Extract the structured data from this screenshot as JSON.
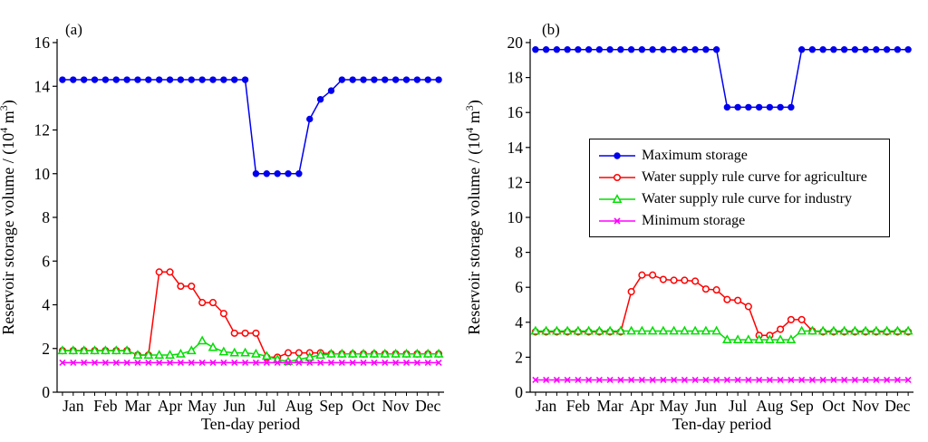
{
  "figure": {
    "background": "#ffffff",
    "text_color": "#000000",
    "xlabel": "Ten-day period",
    "ylabel": "Reservoir storage volume / (10^4 m^3)",
    "ylabel_parts": [
      [
        "Reservoir storage volume / (10",
        false
      ],
      [
        "4",
        true
      ],
      [
        " m",
        false
      ],
      [
        "3",
        true
      ],
      [
        ")",
        false
      ]
    ],
    "months": [
      "Jan",
      "Feb",
      "Mar",
      "Apr",
      "May",
      "Jun",
      "Jul",
      "Aug",
      "Sep",
      "Oct",
      "Nov",
      "Dec"
    ]
  },
  "legend": {
    "location": "panel-b middle-left",
    "entries": [
      {
        "label": "Maximum storage",
        "color": "#0000EE",
        "marker": "filled-circle"
      },
      {
        "label": "Water supply rule curve for agriculture",
        "color": "#FF0000",
        "marker": "open-circle"
      },
      {
        "label": "Water supply rule curve for industry",
        "color": "#00DD00",
        "marker": "open-triangle"
      },
      {
        "label": "Minimum storage",
        "color": "#FF00FF",
        "marker": "x"
      }
    ]
  },
  "chart_data": [
    {
      "type": "line",
      "panel_label": "(a)",
      "xlabel": "Ten-day period",
      "ylabel": "Reservoir storage volume / (10^4 m^3)",
      "x_months": [
        "Jan",
        "Feb",
        "Mar",
        "Apr",
        "May",
        "Jun",
        "Jul",
        "Aug",
        "Sep",
        "Oct",
        "Nov",
        "Dec"
      ],
      "points_per_month": 3,
      "n_points": 36,
      "ylim": [
        0,
        16
      ],
      "ytick_step": 2,
      "grid": false,
      "legend_here": false,
      "series": [
        {
          "name": "Maximum storage",
          "color": "#0000EE",
          "marker": "filled-circle",
          "values": [
            14.3,
            14.3,
            14.3,
            14.3,
            14.3,
            14.3,
            14.3,
            14.3,
            14.3,
            14.3,
            14.3,
            14.3,
            14.3,
            14.3,
            14.3,
            14.3,
            14.3,
            14.3,
            10,
            10,
            10,
            10,
            10,
            12.5,
            13.4,
            13.8,
            14.3,
            14.3,
            14.3,
            14.3,
            14.3,
            14.3,
            14.3,
            14.3,
            14.3,
            14.3
          ]
        },
        {
          "name": "Water supply rule curve for agriculture",
          "color": "#FF0000",
          "marker": "open-circle",
          "values": [
            1.9,
            1.9,
            1.9,
            1.9,
            1.9,
            1.9,
            1.9,
            1.7,
            1.7,
            5.5,
            5.5,
            4.85,
            4.85,
            4.1,
            4.1,
            3.6,
            2.7,
            2.7,
            2.7,
            1.6,
            1.6,
            1.8,
            1.8,
            1.8,
            1.8,
            1.75,
            1.75,
            1.75,
            1.75,
            1.75,
            1.75,
            1.75,
            1.75,
            1.75,
            1.75,
            1.75
          ]
        },
        {
          "name": "Water supply rule curve for industry",
          "color": "#00DD00",
          "marker": "open-triangle",
          "values": [
            1.9,
            1.9,
            1.9,
            1.9,
            1.9,
            1.9,
            1.9,
            1.7,
            1.7,
            1.7,
            1.7,
            1.75,
            1.9,
            2.35,
            2.05,
            1.85,
            1.8,
            1.8,
            1.75,
            1.65,
            1.5,
            1.4,
            1.5,
            1.6,
            1.7,
            1.75,
            1.75,
            1.75,
            1.75,
            1.75,
            1.75,
            1.75,
            1.75,
            1.75,
            1.75,
            1.75
          ]
        },
        {
          "name": "Minimum storage",
          "color": "#FF00FF",
          "marker": "x",
          "values": [
            1.35,
            1.35,
            1.35,
            1.35,
            1.35,
            1.35,
            1.35,
            1.35,
            1.35,
            1.35,
            1.35,
            1.35,
            1.35,
            1.35,
            1.35,
            1.35,
            1.35,
            1.35,
            1.35,
            1.35,
            1.35,
            1.35,
            1.35,
            1.35,
            1.35,
            1.35,
            1.35,
            1.35,
            1.35,
            1.35,
            1.35,
            1.35,
            1.35,
            1.35,
            1.35,
            1.35
          ]
        }
      ]
    },
    {
      "type": "line",
      "panel_label": "(b)",
      "xlabel": "Ten-day period",
      "ylabel": "Reservoir storage volume / (10^4 m^3)",
      "x_months": [
        "Jan",
        "Feb",
        "Mar",
        "Apr",
        "May",
        "Jun",
        "Jul",
        "Aug",
        "Sep",
        "Oct",
        "Nov",
        "Dec"
      ],
      "points_per_month": 3,
      "n_points": 36,
      "ylim": [
        0,
        20
      ],
      "ytick_step": 2,
      "grid": false,
      "legend_here": true,
      "series": [
        {
          "name": "Maximum storage",
          "color": "#0000EE",
          "marker": "filled-circle",
          "values": [
            19.6,
            19.6,
            19.6,
            19.6,
            19.6,
            19.6,
            19.6,
            19.6,
            19.6,
            19.6,
            19.6,
            19.6,
            19.6,
            19.6,
            19.6,
            19.6,
            19.6,
            19.6,
            16.3,
            16.3,
            16.3,
            16.3,
            16.3,
            16.3,
            16.3,
            19.6,
            19.6,
            19.6,
            19.6,
            19.6,
            19.6,
            19.6,
            19.6,
            19.6,
            19.6,
            19.6
          ]
        },
        {
          "name": "Water supply rule curve for agriculture",
          "color": "#FF0000",
          "marker": "open-circle",
          "values": [
            3.45,
            3.45,
            3.45,
            3.45,
            3.45,
            3.45,
            3.45,
            3.45,
            3.45,
            5.75,
            6.7,
            6.7,
            6.45,
            6.4,
            6.4,
            6.35,
            5.9,
            5.85,
            5.3,
            5.25,
            4.9,
            3.25,
            3.25,
            3.6,
            4.15,
            4.15,
            3.5,
            3.45,
            3.45,
            3.45,
            3.45,
            3.45,
            3.45,
            3.45,
            3.45,
            3.45
          ]
        },
        {
          "name": "Water supply rule curve for industry",
          "color": "#00DD00",
          "marker": "open-triangle",
          "values": [
            3.5,
            3.5,
            3.5,
            3.5,
            3.5,
            3.5,
            3.5,
            3.5,
            3.5,
            3.5,
            3.5,
            3.5,
            3.5,
            3.5,
            3.5,
            3.5,
            3.5,
            3.5,
            3.0,
            3.0,
            3.0,
            3.0,
            3.0,
            3.0,
            3.0,
            3.5,
            3.5,
            3.5,
            3.5,
            3.5,
            3.5,
            3.5,
            3.5,
            3.5,
            3.5,
            3.5
          ]
        },
        {
          "name": "Minimum storage",
          "color": "#FF00FF",
          "marker": "x",
          "values": [
            0.7,
            0.7,
            0.7,
            0.7,
            0.7,
            0.7,
            0.7,
            0.7,
            0.7,
            0.7,
            0.7,
            0.7,
            0.7,
            0.7,
            0.7,
            0.7,
            0.7,
            0.7,
            0.7,
            0.7,
            0.7,
            0.7,
            0.7,
            0.7,
            0.7,
            0.7,
            0.7,
            0.7,
            0.7,
            0.7,
            0.7,
            0.7,
            0.7,
            0.7,
            0.7,
            0.7
          ]
        }
      ]
    }
  ]
}
